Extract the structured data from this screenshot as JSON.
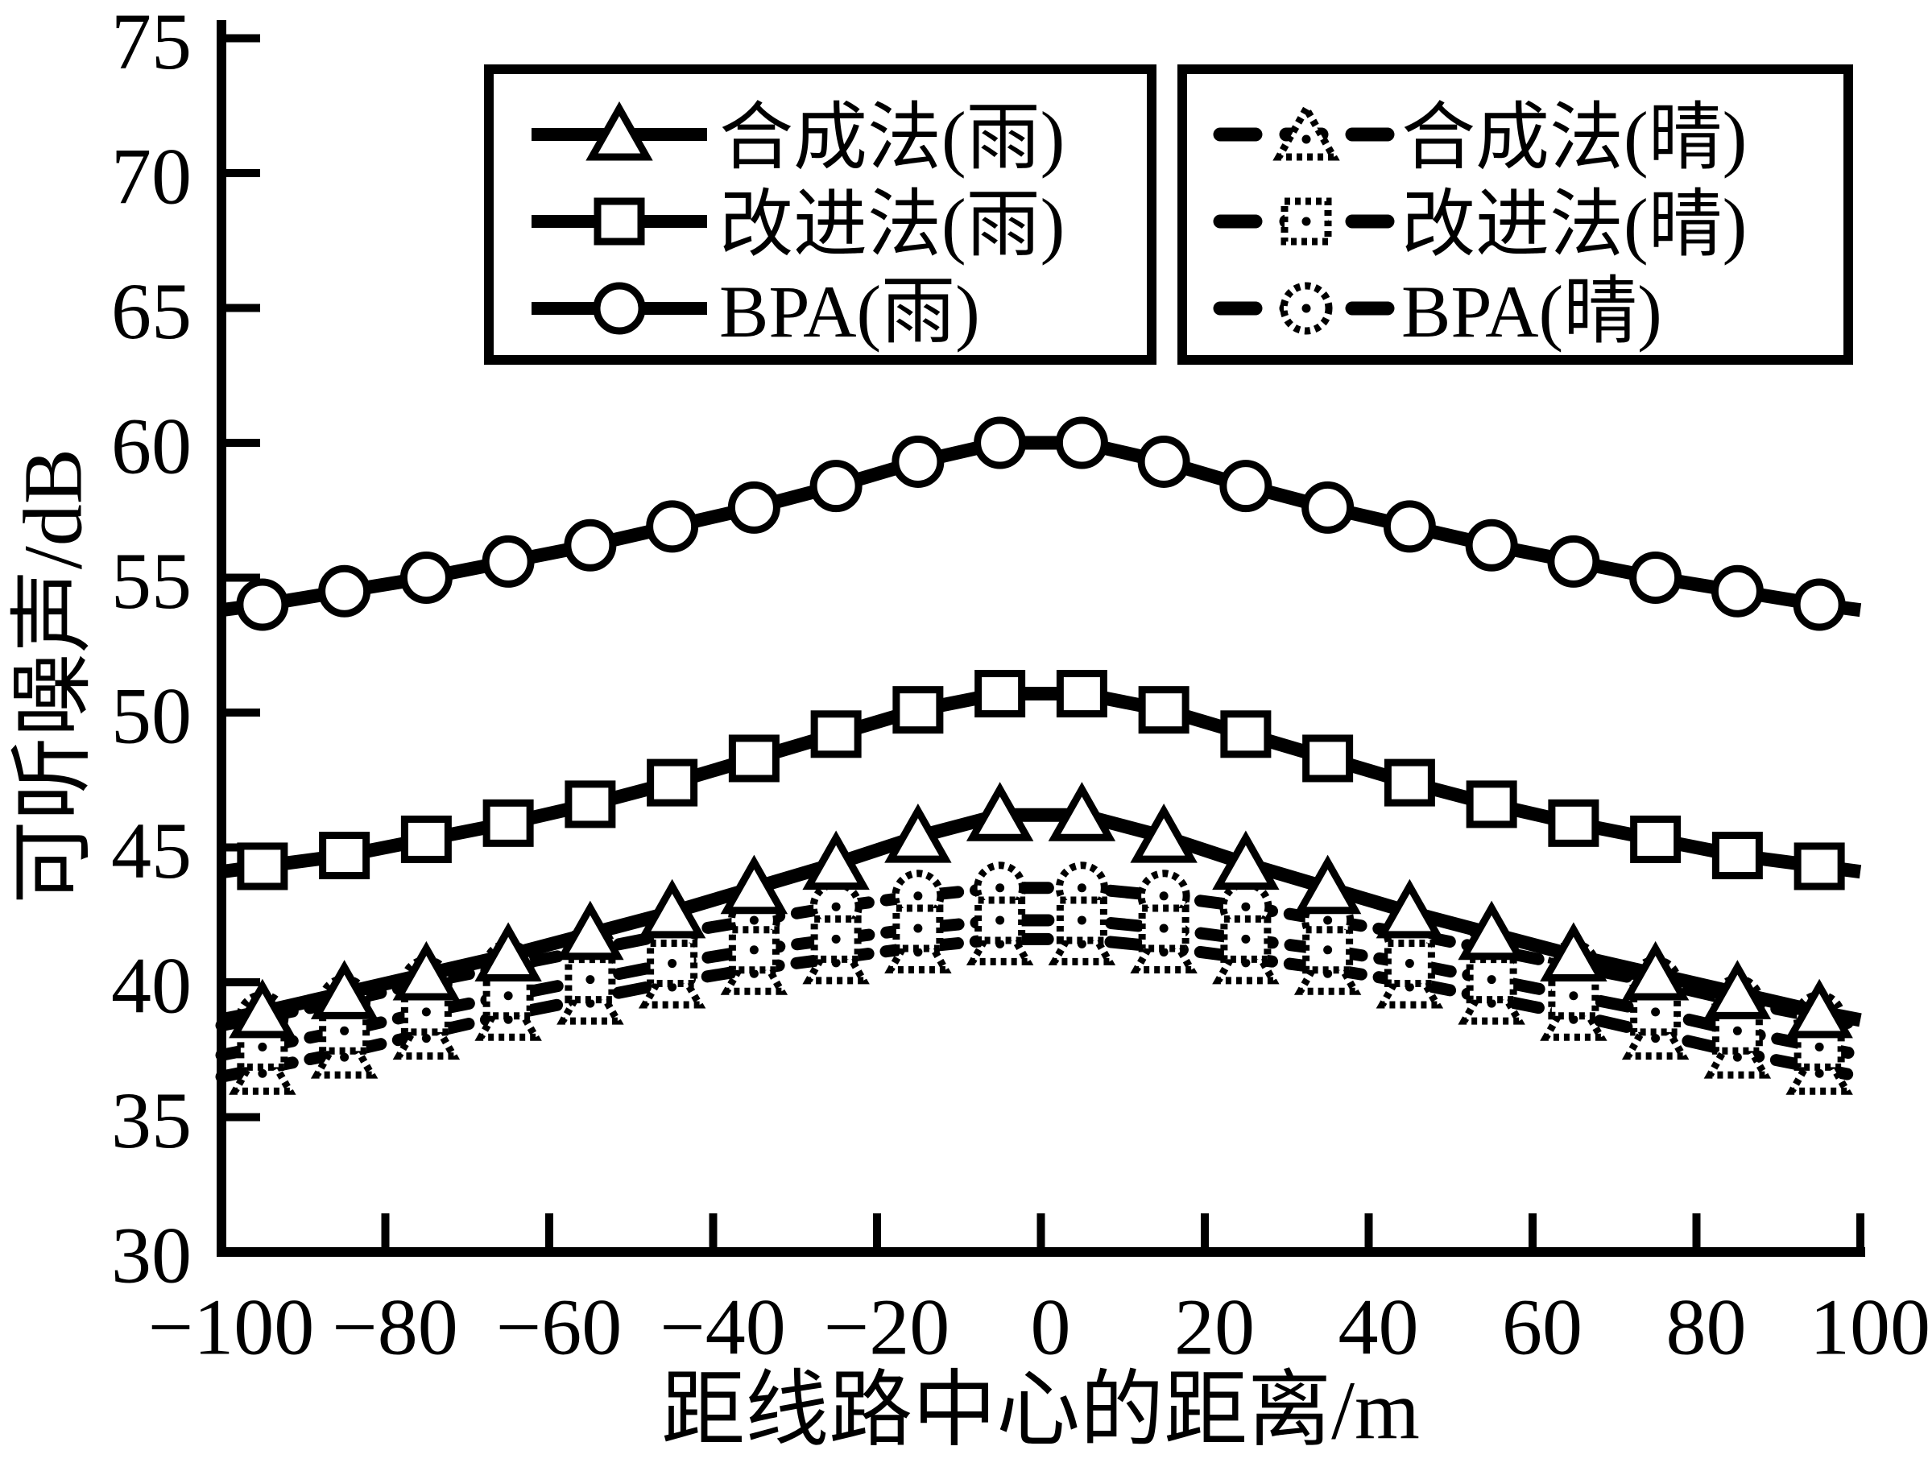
{
  "figure": {
    "background_color": "#ffffff",
    "line_color": "#000000"
  },
  "axes": {
    "x": {
      "title": "距线路中心的距离/m",
      "tick_values": [
        -100,
        -80,
        -60,
        -40,
        -20,
        0,
        20,
        40,
        60,
        80,
        100
      ],
      "tick_labels": [
        "−100",
        "−80",
        "−60",
        "−40",
        "−20",
        "0",
        "20",
        "40",
        "60",
        "80",
        "100"
      ],
      "range": [
        -100,
        100
      ]
    },
    "y": {
      "title": "可听噪声/dB",
      "tick_values": [
        30,
        35,
        40,
        45,
        50,
        55,
        60,
        65,
        70,
        75
      ],
      "tick_labels": [
        "30",
        "35",
        "40",
        "45",
        "50",
        "55",
        "60",
        "65",
        "70",
        "75"
      ],
      "range": [
        30,
        75
      ]
    }
  },
  "legend": {
    "boxes": [
      {
        "style": "solid",
        "items": [
          {
            "label": "合成法(雨)",
            "marker": "triangle"
          },
          {
            "label": "改进法(雨)",
            "marker": "square"
          },
          {
            "label": "BPA(雨)",
            "marker": "circle"
          }
        ]
      },
      {
        "style": "dashed",
        "items": [
          {
            "label": "合成法(晴)",
            "marker": "triangle"
          },
          {
            "label": "改进法(晴)",
            "marker": "square"
          },
          {
            "label": "BPA(晴)",
            "marker": "circle"
          }
        ]
      }
    ]
  },
  "chart_data": {
    "type": "line",
    "title": "",
    "xlabel": "距线路中心的距离/m",
    "ylabel": "可听噪声/dB",
    "xlim": [
      -100,
      100
    ],
    "ylim": [
      30,
      75
    ],
    "grid": false,
    "legend_position": "top-inside",
    "x": [
      -100,
      -95,
      -85,
      -75,
      -65,
      -55,
      -45,
      -35,
      -25,
      -15,
      -5,
      5,
      15,
      25,
      35,
      45,
      55,
      65,
      75,
      85,
      95,
      100
    ],
    "marker_x": [
      -95,
      -85,
      -75,
      -65,
      -55,
      -45,
      -35,
      -25,
      -15,
      -5,
      5,
      15,
      25,
      35,
      45,
      55,
      65,
      75,
      85,
      95
    ],
    "x_tick_labels": [
      "−100",
      "−80",
      "−60",
      "−40",
      "−20",
      "0",
      "20",
      "40",
      "60",
      "80",
      "100"
    ],
    "y_tick_labels": [
      "30",
      "35",
      "40",
      "45",
      "50",
      "55",
      "60",
      "65",
      "70",
      "75"
    ],
    "series": [
      {
        "id": "synthesis-clear",
        "name": "合成法(晴)",
        "marker": "triangle",
        "line": "dashed",
        "values": [
          36.5,
          36.8,
          37.4,
          38.1,
          38.8,
          39.4,
          40.0,
          40.5,
          40.9,
          41.3,
          41.6,
          41.6,
          41.3,
          40.9,
          40.5,
          40.0,
          39.4,
          38.8,
          38.1,
          37.4,
          36.8,
          36.5
        ]
      },
      {
        "id": "bpa-clear",
        "name": "BPA(晴)",
        "marker": "circle",
        "line": "dashed",
        "values": [
          38.4,
          38.7,
          39.3,
          40.0,
          40.6,
          41.2,
          41.8,
          42.3,
          42.8,
          43.2,
          43.5,
          43.5,
          43.2,
          42.8,
          42.3,
          41.8,
          41.2,
          40.6,
          40.0,
          39.3,
          38.7,
          38.4
        ]
      },
      {
        "id": "improved-clear",
        "name": "改进法(晴)",
        "marker": "square",
        "line": "dashed",
        "values": [
          37.3,
          37.6,
          38.2,
          38.9,
          39.5,
          40.1,
          40.7,
          41.2,
          41.6,
          42.0,
          42.3,
          42.3,
          42.0,
          41.6,
          41.2,
          40.7,
          40.1,
          39.5,
          38.9,
          38.2,
          37.6,
          37.3
        ]
      },
      {
        "id": "synthesis-rain",
        "name": "合成法(雨)",
        "marker": "triangle",
        "line": "solid",
        "values": [
          38.6,
          38.9,
          39.6,
          40.3,
          41.0,
          41.8,
          42.6,
          43.5,
          44.4,
          45.4,
          46.2,
          46.2,
          45.4,
          44.4,
          43.5,
          42.6,
          41.8,
          41.0,
          40.3,
          39.6,
          38.9,
          38.6
        ]
      },
      {
        "id": "improved-rain",
        "name": "改进法(雨)",
        "marker": "square",
        "line": "solid",
        "values": [
          44.1,
          44.3,
          44.7,
          45.3,
          45.9,
          46.6,
          47.4,
          48.3,
          49.2,
          50.1,
          50.7,
          50.7,
          50.1,
          49.2,
          48.3,
          47.4,
          46.6,
          45.9,
          45.3,
          44.7,
          44.3,
          44.1
        ]
      },
      {
        "id": "bpa-rain",
        "name": "BPA(雨)",
        "marker": "circle",
        "line": "solid",
        "values": [
          53.8,
          54.0,
          54.5,
          55.0,
          55.6,
          56.2,
          56.9,
          57.6,
          58.4,
          59.3,
          60.0,
          60.0,
          59.3,
          58.4,
          57.6,
          56.9,
          56.2,
          55.6,
          55.0,
          54.5,
          54.0,
          53.8
        ]
      }
    ]
  }
}
